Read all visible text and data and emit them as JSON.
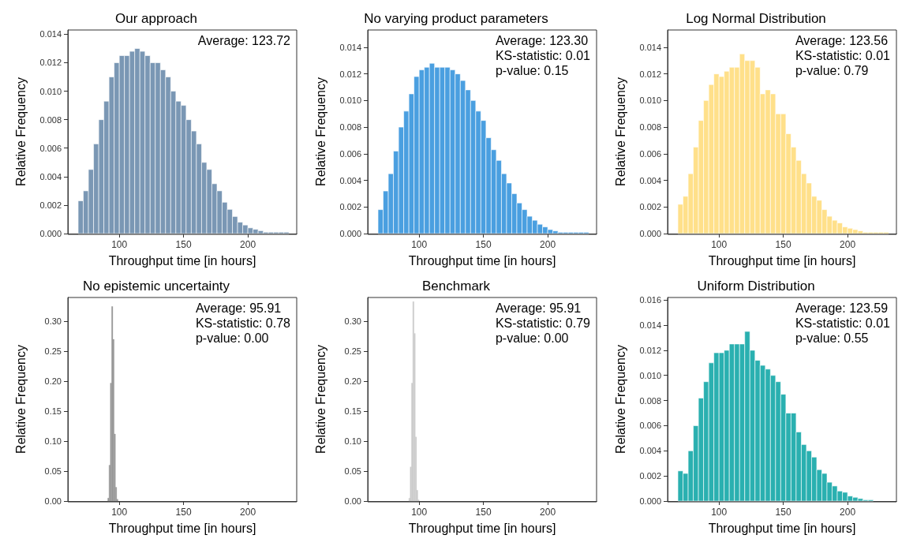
{
  "chart_data": [
    {
      "type": "histogram",
      "title": "Our approach",
      "xlabel": "Throughput time [in hours]",
      "ylabel": "Relative Frequency",
      "annotations": [
        "Average: 123.72"
      ],
      "color": "#7a97b4",
      "bins": [
        68,
        72,
        76,
        80,
        84,
        88,
        92,
        96,
        100,
        104,
        108,
        112,
        116,
        120,
        124,
        128,
        132,
        136,
        140,
        144,
        148,
        152,
        156,
        160,
        164,
        168,
        172,
        176,
        180,
        184,
        188,
        192,
        196,
        200,
        204,
        208,
        212,
        216,
        220,
        224,
        228,
        232
      ],
      "values": [
        0.0023,
        0.003,
        0.0045,
        0.0063,
        0.008,
        0.0093,
        0.011,
        0.012,
        0.0125,
        0.0125,
        0.0128,
        0.013,
        0.0128,
        0.0125,
        0.012,
        0.012,
        0.0115,
        0.011,
        0.01,
        0.0093,
        0.009,
        0.008,
        0.0072,
        0.0063,
        0.005,
        0.0045,
        0.0035,
        0.003,
        0.0022,
        0.0017,
        0.0012,
        0.0008,
        0.0006,
        0.0004,
        0.0003,
        0.0002,
        0.0001,
        0.0001,
        0.0001,
        0.0001,
        0.0001
      ],
      "xlim": [
        60,
        238
      ],
      "ylim": [
        0,
        0.0143
      ],
      "xticks": [
        100,
        150,
        200
      ],
      "yticks": [
        {
          "value": 0,
          "label": "0.000"
        },
        {
          "value": 0.002,
          "label": "0.002"
        },
        {
          "value": 0.004,
          "label": "0.004"
        },
        {
          "value": 0.006,
          "label": "0.006"
        },
        {
          "value": 0.008,
          "label": "0.008"
        },
        {
          "value": 0.01,
          "label": "0.010"
        },
        {
          "value": 0.012,
          "label": "0.012"
        },
        {
          "value": 0.014,
          "label": "0.014"
        }
      ]
    },
    {
      "type": "histogram",
      "title": "No varying product parameters",
      "xlabel": "Throughput time [in hours]",
      "ylabel": "Relative Frequency",
      "annotations": [
        "Average: 123.30",
        "KS-statistic: 0.01",
        "p-value: 0.15"
      ],
      "color": "#4a9fe0",
      "bins": [
        68,
        72,
        76,
        80,
        84,
        88,
        92,
        96,
        100,
        104,
        108,
        112,
        116,
        120,
        124,
        128,
        132,
        136,
        140,
        144,
        148,
        152,
        156,
        160,
        164,
        168,
        172,
        176,
        180,
        184,
        188,
        192,
        196,
        200,
        204,
        208,
        212,
        216,
        220,
        224,
        228,
        232
      ],
      "values": [
        0.0018,
        0.0032,
        0.0045,
        0.0062,
        0.008,
        0.0092,
        0.0105,
        0.0118,
        0.0123,
        0.0125,
        0.0128,
        0.0125,
        0.0125,
        0.0125,
        0.0123,
        0.012,
        0.0115,
        0.0108,
        0.01,
        0.0092,
        0.0085,
        0.0072,
        0.0063,
        0.0055,
        0.0045,
        0.0038,
        0.003,
        0.0023,
        0.0018,
        0.0013,
        0.001,
        0.0007,
        0.0005,
        0.0003,
        0.0002,
        0.0001,
        0.0001,
        0.0001,
        0.0001,
        0.0001,
        0.0001
      ],
      "xlim": [
        60,
        238
      ],
      "ylim": [
        0,
        0.0153
      ],
      "xticks": [
        100,
        150,
        200
      ],
      "yticks": [
        {
          "value": 0,
          "label": "0.000"
        },
        {
          "value": 0.002,
          "label": "0.002"
        },
        {
          "value": 0.004,
          "label": "0.004"
        },
        {
          "value": 0.006,
          "label": "0.006"
        },
        {
          "value": 0.008,
          "label": "0.008"
        },
        {
          "value": 0.01,
          "label": "0.010"
        },
        {
          "value": 0.012,
          "label": "0.012"
        },
        {
          "value": 0.014,
          "label": "0.014"
        }
      ]
    },
    {
      "type": "histogram",
      "title": "Log Normal Distribution",
      "xlabel": "Throughput time [in hours]",
      "ylabel": "Relative Frequency",
      "annotations": [
        "Average: 123.56",
        "KS-statistic: 0.01",
        "p-value: 0.79"
      ],
      "color": "#ffe08a",
      "bins": [
        68,
        72,
        76,
        80,
        84,
        88,
        92,
        96,
        100,
        104,
        108,
        112,
        116,
        120,
        124,
        128,
        132,
        136,
        140,
        144,
        148,
        152,
        156,
        160,
        164,
        168,
        172,
        176,
        180,
        184,
        188,
        192,
        196,
        200,
        204,
        208,
        212,
        216,
        220,
        224,
        228,
        232
      ],
      "values": [
        0.0022,
        0.0028,
        0.0045,
        0.0065,
        0.0085,
        0.01,
        0.0112,
        0.012,
        0.0118,
        0.0122,
        0.0125,
        0.0125,
        0.0135,
        0.013,
        0.013,
        0.0125,
        0.0105,
        0.0108,
        0.0105,
        0.009,
        0.009,
        0.0075,
        0.0065,
        0.0055,
        0.0045,
        0.0038,
        0.0028,
        0.0025,
        0.0018,
        0.0013,
        0.001,
        0.0008,
        0.0005,
        0.0004,
        0.0003,
        0.0002,
        0.0001,
        0.0001,
        0.0001,
        0.0001,
        0.0001
      ],
      "xlim": [
        60,
        238
      ],
      "ylim": [
        0,
        0.0153
      ],
      "xticks": [
        100,
        150,
        200
      ],
      "yticks": [
        {
          "value": 0,
          "label": "0.000"
        },
        {
          "value": 0.002,
          "label": "0.002"
        },
        {
          "value": 0.004,
          "label": "0.004"
        },
        {
          "value": 0.006,
          "label": "0.006"
        },
        {
          "value": 0.008,
          "label": "0.008"
        },
        {
          "value": 0.01,
          "label": "0.010"
        },
        {
          "value": 0.012,
          "label": "0.012"
        },
        {
          "value": 0.014,
          "label": "0.014"
        }
      ]
    },
    {
      "type": "histogram",
      "title": "No epistemic uncertainty",
      "xlabel": "Throughput time [in hours]",
      "ylabel": "Relative Frequency",
      "annotations": [
        "Average: 95.91",
        "KS-statistic: 0.78",
        "p-value: 0.00"
      ],
      "color": "#999999",
      "bins": [
        91,
        92,
        93,
        94,
        95,
        96,
        97,
        98,
        99
      ],
      "values": [
        0.005,
        0.06,
        0.197,
        0.325,
        0.27,
        0.112,
        0.023,
        0.003
      ],
      "xlim": [
        60,
        238
      ],
      "ylim": [
        0,
        0.34
      ],
      "xticks": [
        100,
        150,
        200
      ],
      "yticks": [
        {
          "value": 0,
          "label": "0.00"
        },
        {
          "value": 0.05,
          "label": "0.05"
        },
        {
          "value": 0.1,
          "label": "0.10"
        },
        {
          "value": 0.15,
          "label": "0.15"
        },
        {
          "value": 0.2,
          "label": "0.20"
        },
        {
          "value": 0.25,
          "label": "0.25"
        },
        {
          "value": 0.3,
          "label": "0.30"
        }
      ]
    },
    {
      "type": "histogram",
      "title": "Benchmark",
      "xlabel": "Throughput time [in hours]",
      "ylabel": "Relative Frequency",
      "annotations": [
        "Average: 95.91",
        "KS-statistic: 0.79",
        "p-value: 0.00"
      ],
      "color": "#cccccc",
      "bins": [
        92,
        93,
        94,
        95,
        96,
        97,
        98,
        99,
        100
      ],
      "values": [
        0.005,
        0.057,
        0.197,
        0.333,
        0.28,
        0.107,
        0.018,
        0.002
      ],
      "xlim": [
        60,
        238
      ],
      "ylim": [
        0,
        0.34
      ],
      "xticks": [
        100,
        150,
        200
      ],
      "yticks": [
        {
          "value": 0,
          "label": "0.00"
        },
        {
          "value": 0.05,
          "label": "0.05"
        },
        {
          "value": 0.1,
          "label": "0.10"
        },
        {
          "value": 0.15,
          "label": "0.15"
        },
        {
          "value": 0.2,
          "label": "0.20"
        },
        {
          "value": 0.25,
          "label": "0.25"
        },
        {
          "value": 0.3,
          "label": "0.30"
        }
      ]
    },
    {
      "type": "histogram",
      "title": "Uniform Distribution",
      "xlabel": "Throughput time [in hours]",
      "ylabel": "Relative Frequency",
      "annotations": [
        "Average: 123.59",
        "KS-statistic: 0.01",
        "p-value: 0.55"
      ],
      "color": "#2ab0b0",
      "bins": [
        68,
        72,
        76,
        80,
        84,
        88,
        92,
        96,
        100,
        104,
        108,
        112,
        116,
        120,
        124,
        128,
        132,
        136,
        140,
        144,
        148,
        152,
        156,
        160,
        164,
        168,
        172,
        176,
        180,
        184,
        188,
        192,
        196,
        200,
        204,
        208,
        212,
        216,
        220
      ],
      "values": [
        0.0024,
        0.0022,
        0.004,
        0.006,
        0.0082,
        0.0095,
        0.011,
        0.0118,
        0.0118,
        0.012,
        0.0125,
        0.0125,
        0.0125,
        0.0135,
        0.012,
        0.0112,
        0.0108,
        0.0105,
        0.01,
        0.0095,
        0.0085,
        0.007,
        0.007,
        0.0055,
        0.0045,
        0.004,
        0.0035,
        0.0025,
        0.0022,
        0.0015,
        0.0012,
        0.0008,
        0.0007,
        0.0004,
        0.0003,
        0.0002,
        0.0001,
        0.0001
      ],
      "xlim": [
        60,
        238
      ],
      "ylim": [
        0,
        0.0162
      ],
      "xticks": [
        100,
        150,
        200
      ],
      "yticks": [
        {
          "value": 0,
          "label": "0.000"
        },
        {
          "value": 0.002,
          "label": "0.002"
        },
        {
          "value": 0.004,
          "label": "0.004"
        },
        {
          "value": 0.006,
          "label": "0.006"
        },
        {
          "value": 0.008,
          "label": "0.008"
        },
        {
          "value": 0.01,
          "label": "0.010"
        },
        {
          "value": 0.012,
          "label": "0.012"
        },
        {
          "value": 0.014,
          "label": "0.014"
        },
        {
          "value": 0.016,
          "label": "0.016"
        }
      ]
    }
  ]
}
